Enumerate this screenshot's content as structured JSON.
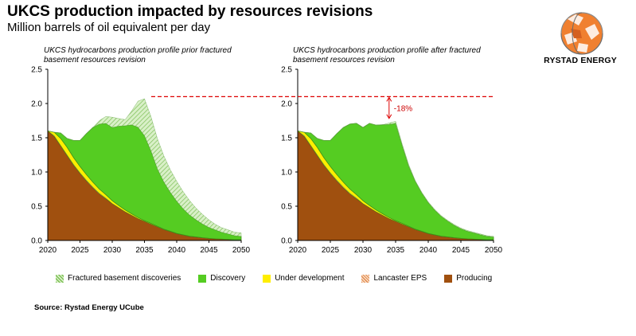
{
  "header": {
    "title": "UKCS production impacted by resources revisions",
    "subtitle": "Million barrels of oil equivalent per day",
    "logo_text": "RYSTAD ENERGY",
    "logo_icon": "globe-logo-icon"
  },
  "colors": {
    "fractured": "#c8e8b0",
    "fractured_stroke": "#6aa84f",
    "discovery": "#55cc22",
    "under_development": "#ffee00",
    "lancaster": "#f0b080",
    "producing": "#a0500f",
    "annotation": "#dd0000"
  },
  "legend": [
    {
      "key": "fractured",
      "label": "Fractured basement discoveries"
    },
    {
      "key": "discovery",
      "label": "Discovery"
    },
    {
      "key": "under_development",
      "label": "Under development"
    },
    {
      "key": "lancaster",
      "label": "Lancaster EPS"
    },
    {
      "key": "producing",
      "label": "Producing"
    }
  ],
  "source": "Source: Rystad Energy UCube",
  "chart_data": [
    {
      "type": "area",
      "title": "UKCS hydrocarbons production profile prior fractured basement resources revision",
      "x": [
        2020,
        2021,
        2022,
        2023,
        2024,
        2025,
        2026,
        2027,
        2028,
        2029,
        2030,
        2031,
        2032,
        2033,
        2034,
        2035,
        2036,
        2037,
        2038,
        2039,
        2040,
        2041,
        2042,
        2043,
        2044,
        2045,
        2046,
        2047,
        2048,
        2049,
        2050
      ],
      "xticks": [
        2020,
        2025,
        2030,
        2035,
        2040,
        2045,
        2050
      ],
      "yticks": [
        "0.0",
        "0.5",
        "1.0",
        "1.5",
        "2.0",
        "2.5"
      ],
      "ylim": [
        0,
        2.5
      ],
      "series": [
        {
          "name": "Producing",
          "key": "producing",
          "values": [
            1.6,
            1.52,
            1.38,
            1.24,
            1.1,
            0.98,
            0.87,
            0.77,
            0.68,
            0.61,
            0.54,
            0.48,
            0.42,
            0.37,
            0.32,
            0.28,
            0.24,
            0.2,
            0.16,
            0.13,
            0.1,
            0.08,
            0.06,
            0.05,
            0.04,
            0.03,
            0.025,
            0.02,
            0.015,
            0.01,
            0.01
          ]
        },
        {
          "name": "Lancaster EPS",
          "key": "lancaster",
          "values": [
            0.0,
            0.01,
            0.01,
            0.01,
            0.01,
            0.01,
            0.01,
            0.01,
            0.01,
            0.01,
            0.0,
            0.0,
            0.0,
            0.0,
            0.0,
            0.0,
            0.0,
            0.0,
            0.0,
            0.0,
            0.0,
            0.0,
            0.0,
            0.0,
            0.0,
            0.0,
            0.0,
            0.0,
            0.0,
            0.0,
            0.0
          ]
        },
        {
          "name": "Under development",
          "key": "under_development",
          "values": [
            0.0,
            0.05,
            0.1,
            0.11,
            0.1,
            0.09,
            0.08,
            0.07,
            0.06,
            0.05,
            0.04,
            0.03,
            0.025,
            0.02,
            0.015,
            0.01,
            0.01,
            0.008,
            0.006,
            0.005,
            0.004,
            0.003,
            0.002,
            0.002,
            0.001,
            0.001,
            0.0,
            0.0,
            0.0,
            0.0,
            0.0
          ]
        },
        {
          "name": "Discovery",
          "key": "discovery",
          "values": [
            0.0,
            0.0,
            0.08,
            0.13,
            0.25,
            0.38,
            0.6,
            0.8,
            0.95,
            1.04,
            1.07,
            1.16,
            1.23,
            1.3,
            1.32,
            1.24,
            1.06,
            0.84,
            0.69,
            0.57,
            0.47,
            0.38,
            0.31,
            0.25,
            0.2,
            0.16,
            0.13,
            0.1,
            0.08,
            0.06,
            0.05
          ]
        },
        {
          "name": "Fractured basement discoveries",
          "key": "fractured",
          "values": [
            0.0,
            0.0,
            0.0,
            0.0,
            0.0,
            0.0,
            0.0,
            0.0,
            0.05,
            0.1,
            0.15,
            0.11,
            0.09,
            0.2,
            0.38,
            0.54,
            0.5,
            0.44,
            0.38,
            0.33,
            0.29,
            0.25,
            0.21,
            0.17,
            0.14,
            0.11,
            0.08,
            0.065,
            0.06,
            0.05,
            0.05
          ]
        }
      ]
    },
    {
      "type": "area",
      "title": "UKCS hydrocarbons production profile after fractured basement resources revision",
      "x": [
        2020,
        2021,
        2022,
        2023,
        2024,
        2025,
        2026,
        2027,
        2028,
        2029,
        2030,
        2031,
        2032,
        2033,
        2034,
        2035,
        2036,
        2037,
        2038,
        2039,
        2040,
        2041,
        2042,
        2043,
        2044,
        2045,
        2046,
        2047,
        2048,
        2049,
        2050
      ],
      "xticks": [
        2020,
        2025,
        2030,
        2035,
        2040,
        2045,
        2050
      ],
      "yticks": [
        "0.0",
        "0.5",
        "1.0",
        "1.5",
        "2.0",
        "2.5"
      ],
      "ylim": [
        0,
        2.5
      ],
      "annotation": {
        "text": "-18%",
        "from": 2.1,
        "to": 1.77,
        "x": 2034
      },
      "reference_line": 2.1,
      "series": [
        {
          "name": "Producing",
          "key": "producing",
          "values": [
            1.6,
            1.52,
            1.38,
            1.24,
            1.1,
            0.98,
            0.87,
            0.77,
            0.68,
            0.61,
            0.54,
            0.48,
            0.42,
            0.37,
            0.32,
            0.28,
            0.24,
            0.2,
            0.16,
            0.13,
            0.1,
            0.08,
            0.06,
            0.05,
            0.04,
            0.03,
            0.025,
            0.02,
            0.015,
            0.01,
            0.01
          ]
        },
        {
          "name": "Lancaster EPS",
          "key": "lancaster",
          "values": [
            0.0,
            0.01,
            0.01,
            0.01,
            0.01,
            0.01,
            0.01,
            0.01,
            0.01,
            0.01,
            0.0,
            0.0,
            0.0,
            0.0,
            0.0,
            0.0,
            0.0,
            0.0,
            0.0,
            0.0,
            0.0,
            0.0,
            0.0,
            0.0,
            0.0,
            0.0,
            0.0,
            0.0,
            0.0,
            0.0,
            0.0
          ]
        },
        {
          "name": "Under development",
          "key": "under_development",
          "values": [
            0.0,
            0.05,
            0.1,
            0.11,
            0.1,
            0.09,
            0.08,
            0.07,
            0.06,
            0.05,
            0.04,
            0.03,
            0.025,
            0.02,
            0.015,
            0.01,
            0.01,
            0.008,
            0.006,
            0.005,
            0.004,
            0.003,
            0.002,
            0.002,
            0.001,
            0.001,
            0.0,
            0.0,
            0.0,
            0.0,
            0.0
          ]
        },
        {
          "name": "Discovery",
          "key": "discovery",
          "values": [
            0.0,
            0.0,
            0.08,
            0.13,
            0.25,
            0.38,
            0.6,
            0.8,
            0.95,
            1.04,
            1.07,
            1.2,
            1.24,
            1.3,
            1.36,
            1.42,
            1.14,
            0.88,
            0.7,
            0.56,
            0.45,
            0.36,
            0.29,
            0.23,
            0.18,
            0.14,
            0.11,
            0.09,
            0.07,
            0.05,
            0.04
          ]
        },
        {
          "name": "Fractured basement discoveries",
          "key": "fractured",
          "values": [
            0.0,
            0.0,
            0.0,
            0.0,
            0.0,
            0.0,
            0.0,
            0.0,
            0.0,
            0.0,
            0.0,
            0.0,
            0.0,
            0.0,
            0.02,
            0.03,
            0.02,
            0.02,
            0.01,
            0.01,
            0.01,
            0.01,
            0.01,
            0.01,
            0.01,
            0.01,
            0.01,
            0.01,
            0.01,
            0.01,
            0.01
          ]
        }
      ]
    }
  ]
}
